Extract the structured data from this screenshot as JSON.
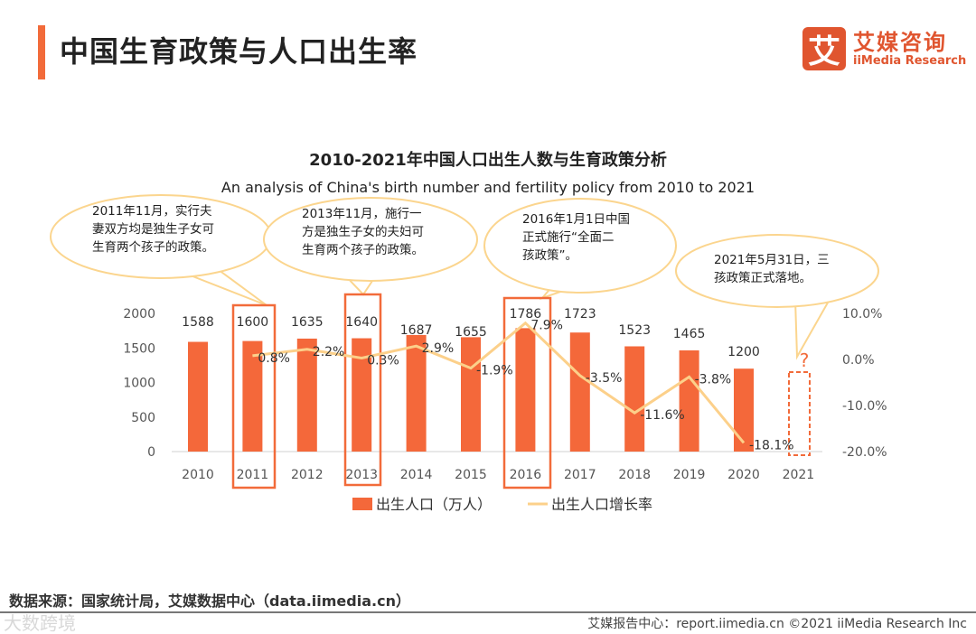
{
  "page_title": "中国生育政策与人口出生率",
  "logo": {
    "mark": "艾",
    "cn": "艾媒咨询",
    "en": "iiMedia Research"
  },
  "source": "数据来源：国家统计局，艾媒数据中心（data.iimedia.cn）",
  "footer": "艾媒报告中心：report.iimedia.cn  ©2021  iiMedia Research  Inc",
  "watermark": "大数跨境",
  "callouts": [
    {
      "year": "2011",
      "lines": [
        "2011年11月，实行夫",
        "妻双方均是独生子女可",
        "生育两个孩子的政策。"
      ]
    },
    {
      "year": "2013",
      "lines": [
        "2013年11月，施行一",
        "方是独生子女的夫妇可",
        "生育两个孩子的政策。"
      ]
    },
    {
      "year": "2016",
      "lines": [
        "2016年1月1日中国",
        "正式施行“全面二",
        "孩政策”。"
      ]
    },
    {
      "year": "2021",
      "lines": [
        "2021年5月31日，三",
        "孩政策正式落地。"
      ]
    }
  ],
  "question_mark": "?",
  "chart_data": {
    "type": "bar+line",
    "title": "2010-2021年中国人口出生人数与生育政策分析",
    "subtitle": "An analysis of China's birth number and fertility policy from 2010 to 2021",
    "categories": [
      "2010",
      "2011",
      "2012",
      "2013",
      "2014",
      "2015",
      "2016",
      "2017",
      "2018",
      "2019",
      "2020",
      "2021"
    ],
    "series": [
      {
        "name": "出生人口（万人）",
        "type": "bar",
        "color": "#f4683a",
        "axis": "left",
        "values": [
          1588,
          1600,
          1635,
          1640,
          1687,
          1655,
          1786,
          1723,
          1523,
          1465,
          1200,
          null
        ]
      },
      {
        "name": "出生人口增长率",
        "type": "line",
        "color": "#fcd08a",
        "axis": "right",
        "values": [
          null,
          0.8,
          2.2,
          0.3,
          2.9,
          -1.9,
          7.9,
          -3.5,
          -11.6,
          -3.8,
          -18.1,
          null
        ],
        "labels": [
          null,
          "0.8%",
          "2.2%",
          "0.3%",
          "2.9%",
          "-1.9%",
          "7.9%",
          "-3.5%",
          "-11.6%",
          "-3.8%",
          "-18.1%",
          null
        ]
      }
    ],
    "left_axis": {
      "ticks": [
        "0",
        "500",
        "1000",
        "1500",
        "2000"
      ],
      "ylim": [
        0,
        2000
      ]
    },
    "right_axis": {
      "ticks": [
        "-20.0%",
        "-10.0%",
        "0.0%",
        "10.0%"
      ],
      "ylim": [
        -20,
        10
      ]
    },
    "highlighted_years": [
      "2011",
      "2013",
      "2016"
    ],
    "pending_year": "2021",
    "legend": "bottom-center"
  }
}
